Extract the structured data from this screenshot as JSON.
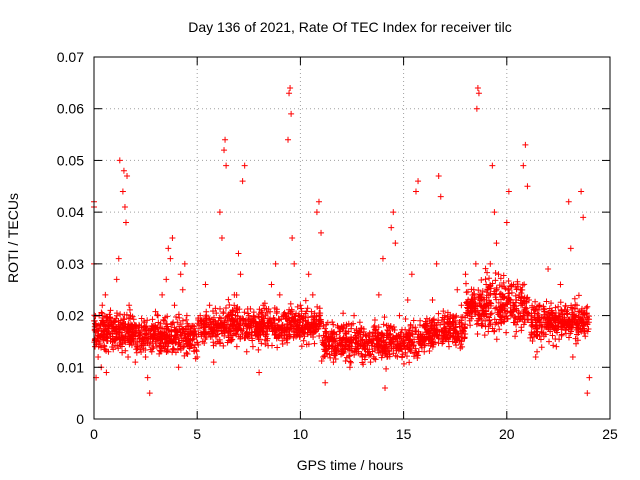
{
  "chart_data": {
    "type": "scatter",
    "title": "Day 136 of 2021, Rate Of TEC Index for receiver tilc",
    "xlabel": "GPS time / hours",
    "ylabel": "ROTI / TECUs",
    "xlim": [
      0,
      25
    ],
    "ylim": [
      0,
      0.07
    ],
    "xticks": [
      0,
      5,
      10,
      15,
      20,
      25
    ],
    "yticks": [
      0,
      0.01,
      0.02,
      0.03,
      0.04,
      0.05,
      0.06,
      0.07
    ],
    "xtick_labels": [
      "0",
      "5",
      "10",
      "15",
      "20",
      "25"
    ],
    "ytick_labels": [
      "0",
      "0.01",
      "0.02",
      "0.03",
      "0.04",
      "0.05",
      "0.06",
      "0.07"
    ],
    "grid": true,
    "marker": "plus",
    "color": "#ff0000",
    "x_range_of_samples": [
      0,
      24
    ],
    "series": [
      {
        "points": [
          [
            0.0,
            0.03
          ],
          [
            0.0,
            0.041
          ],
          [
            0.0,
            0.042
          ],
          [
            0.05,
            0.014
          ],
          [
            0.1,
            0.008
          ],
          [
            0.15,
            0.018
          ],
          [
            0.2,
            0.012
          ],
          [
            0.25,
            0.02
          ],
          [
            0.3,
            0.016
          ],
          [
            0.35,
            0.01
          ],
          [
            0.4,
            0.022
          ],
          [
            0.5,
            0.014
          ],
          [
            0.55,
            0.024
          ],
          [
            0.6,
            0.009
          ],
          [
            0.65,
            0.017
          ],
          [
            0.7,
            0.013
          ],
          [
            0.8,
            0.021
          ],
          [
            0.9,
            0.015
          ],
          [
            1.0,
            0.019
          ],
          [
            1.1,
            0.027
          ],
          [
            1.2,
            0.031
          ],
          [
            1.25,
            0.05
          ],
          [
            1.3,
            0.018
          ],
          [
            1.4,
            0.044
          ],
          [
            1.45,
            0.048
          ],
          [
            1.5,
            0.041
          ],
          [
            1.55,
            0.038
          ],
          [
            1.6,
            0.047
          ],
          [
            1.65,
            0.012
          ],
          [
            1.7,
            0.022
          ],
          [
            1.8,
            0.016
          ],
          [
            2.0,
            0.011
          ],
          [
            2.1,
            0.014
          ],
          [
            2.2,
            0.018
          ],
          [
            2.4,
            0.015
          ],
          [
            2.5,
            0.012
          ],
          [
            2.6,
            0.008
          ],
          [
            2.7,
            0.005
          ],
          [
            2.8,
            0.013
          ],
          [
            2.9,
            0.018
          ],
          [
            3.0,
            0.015
          ],
          [
            3.1,
            0.02
          ],
          [
            3.2,
            0.014
          ],
          [
            3.3,
            0.024
          ],
          [
            3.4,
            0.019
          ],
          [
            3.5,
            0.027
          ],
          [
            3.6,
            0.033
          ],
          [
            3.7,
            0.031
          ],
          [
            3.8,
            0.035
          ],
          [
            3.9,
            0.022
          ],
          [
            4.0,
            0.017
          ],
          [
            4.1,
            0.01
          ],
          [
            4.2,
            0.028
          ],
          [
            4.3,
            0.025
          ],
          [
            4.4,
            0.03
          ],
          [
            4.5,
            0.02
          ],
          [
            4.6,
            0.014
          ],
          [
            4.8,
            0.018
          ],
          [
            5.0,
            0.012
          ],
          [
            5.2,
            0.016
          ],
          [
            5.4,
            0.026
          ],
          [
            5.6,
            0.022
          ],
          [
            5.8,
            0.011
          ],
          [
            6.0,
            0.015
          ],
          [
            6.1,
            0.04
          ],
          [
            6.2,
            0.035
          ],
          [
            6.3,
            0.052
          ],
          [
            6.35,
            0.054
          ],
          [
            6.4,
            0.049
          ],
          [
            6.5,
            0.02
          ],
          [
            6.6,
            0.018
          ],
          [
            6.8,
            0.024
          ],
          [
            7.0,
            0.032
          ],
          [
            7.1,
            0.028
          ],
          [
            7.2,
            0.046
          ],
          [
            7.3,
            0.049
          ],
          [
            7.4,
            0.013
          ],
          [
            7.5,
            0.02
          ],
          [
            7.7,
            0.014
          ],
          [
            7.9,
            0.018
          ],
          [
            8.0,
            0.009
          ],
          [
            8.2,
            0.022
          ],
          [
            8.4,
            0.017
          ],
          [
            8.6,
            0.026
          ],
          [
            8.8,
            0.03
          ],
          [
            9.0,
            0.024
          ],
          [
            9.2,
            0.02
          ],
          [
            9.4,
            0.054
          ],
          [
            9.45,
            0.063
          ],
          [
            9.5,
            0.064
          ],
          [
            9.55,
            0.059
          ],
          [
            9.6,
            0.035
          ],
          [
            9.7,
            0.03
          ],
          [
            9.8,
            0.018
          ],
          [
            10.0,
            0.022
          ],
          [
            10.2,
            0.016
          ],
          [
            10.4,
            0.028
          ],
          [
            10.6,
            0.024
          ],
          [
            10.8,
            0.04
          ],
          [
            10.9,
            0.042
          ],
          [
            11.0,
            0.036
          ],
          [
            11.1,
            0.012
          ],
          [
            11.2,
            0.007
          ],
          [
            11.4,
            0.015
          ],
          [
            11.6,
            0.011
          ],
          [
            11.8,
            0.018
          ],
          [
            12.0,
            0.013
          ],
          [
            12.2,
            0.017
          ],
          [
            12.4,
            0.01
          ],
          [
            12.6,
            0.02
          ],
          [
            12.8,
            0.014
          ],
          [
            13.0,
            0.012
          ],
          [
            13.2,
            0.016
          ],
          [
            13.4,
            0.011
          ],
          [
            13.6,
            0.018
          ],
          [
            13.8,
            0.024
          ],
          [
            14.0,
            0.031
          ],
          [
            14.1,
            0.006
          ],
          [
            14.2,
            0.012
          ],
          [
            14.4,
            0.037
          ],
          [
            14.5,
            0.04
          ],
          [
            14.6,
            0.034
          ],
          [
            14.8,
            0.02
          ],
          [
            15.0,
            0.016
          ],
          [
            15.2,
            0.023
          ],
          [
            15.4,
            0.028
          ],
          [
            15.6,
            0.044
          ],
          [
            15.7,
            0.046
          ],
          [
            15.8,
            0.019
          ],
          [
            16.0,
            0.013
          ],
          [
            16.2,
            0.017
          ],
          [
            16.4,
            0.023
          ],
          [
            16.6,
            0.03
          ],
          [
            16.7,
            0.047
          ],
          [
            16.8,
            0.043
          ],
          [
            17.0,
            0.02
          ],
          [
            17.2,
            0.014
          ],
          [
            17.4,
            0.018
          ],
          [
            17.6,
            0.025
          ],
          [
            17.8,
            0.022
          ],
          [
            18.0,
            0.028
          ],
          [
            18.2,
            0.019
          ],
          [
            18.4,
            0.025
          ],
          [
            18.5,
            0.03
          ],
          [
            18.55,
            0.06
          ],
          [
            18.6,
            0.064
          ],
          [
            18.65,
            0.063
          ],
          [
            18.7,
            0.022
          ],
          [
            18.8,
            0.018
          ],
          [
            19.0,
            0.026
          ],
          [
            19.2,
            0.03
          ],
          [
            19.3,
            0.049
          ],
          [
            19.4,
            0.04
          ],
          [
            19.5,
            0.034
          ],
          [
            19.6,
            0.028
          ],
          [
            19.8,
            0.024
          ],
          [
            20.0,
            0.038
          ],
          [
            20.1,
            0.044
          ],
          [
            20.2,
            0.02
          ],
          [
            20.4,
            0.016
          ],
          [
            20.6,
            0.024
          ],
          [
            20.8,
            0.049
          ],
          [
            20.9,
            0.053
          ],
          [
            21.0,
            0.045
          ],
          [
            21.2,
            0.018
          ],
          [
            21.4,
            0.012
          ],
          [
            21.6,
            0.022
          ],
          [
            21.8,
            0.016
          ],
          [
            22.0,
            0.029
          ],
          [
            22.2,
            0.02
          ],
          [
            22.4,
            0.014
          ],
          [
            22.6,
            0.026
          ],
          [
            22.8,
            0.018
          ],
          [
            23.0,
            0.042
          ],
          [
            23.1,
            0.033
          ],
          [
            23.2,
            0.012
          ],
          [
            23.4,
            0.022
          ],
          [
            23.6,
            0.044
          ],
          [
            23.7,
            0.039
          ],
          [
            23.8,
            0.016
          ],
          [
            23.9,
            0.005
          ],
          [
            24.0,
            0.008
          ]
        ]
      }
    ]
  }
}
